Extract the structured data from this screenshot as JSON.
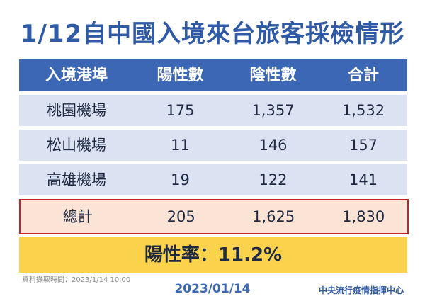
{
  "title": "1/12自中國入境來台旅客採檢情形",
  "chart_data": {
    "type": "table",
    "title": "1/12自中國入境來台旅客採檢情形",
    "columns": [
      "入境港埠",
      "陽性數",
      "陰性數",
      "合計"
    ],
    "rows": [
      [
        "桃園機場",
        "175",
        "1,357",
        "1,532"
      ],
      [
        "松山機場",
        "11",
        "146",
        "157"
      ],
      [
        "高雄機場",
        "19",
        "122",
        "141"
      ]
    ],
    "total": [
      "總計",
      "205",
      "1,625",
      "1,830"
    ],
    "positive_rate": "陽性率：11.2%",
    "colors": {
      "title": "#2f5aa6",
      "header_bg": "#3c67b4",
      "row_bg": "#dbe3f2",
      "total_bg": "#fbe3d6",
      "total_border": "#c8202a",
      "rate_band": "#fbd24c"
    }
  },
  "footer": {
    "source": "資料擷取時間：2023/1/14 10:00",
    "date": "2023/01/14",
    "agency": "中央流行疫情指揮中心"
  }
}
